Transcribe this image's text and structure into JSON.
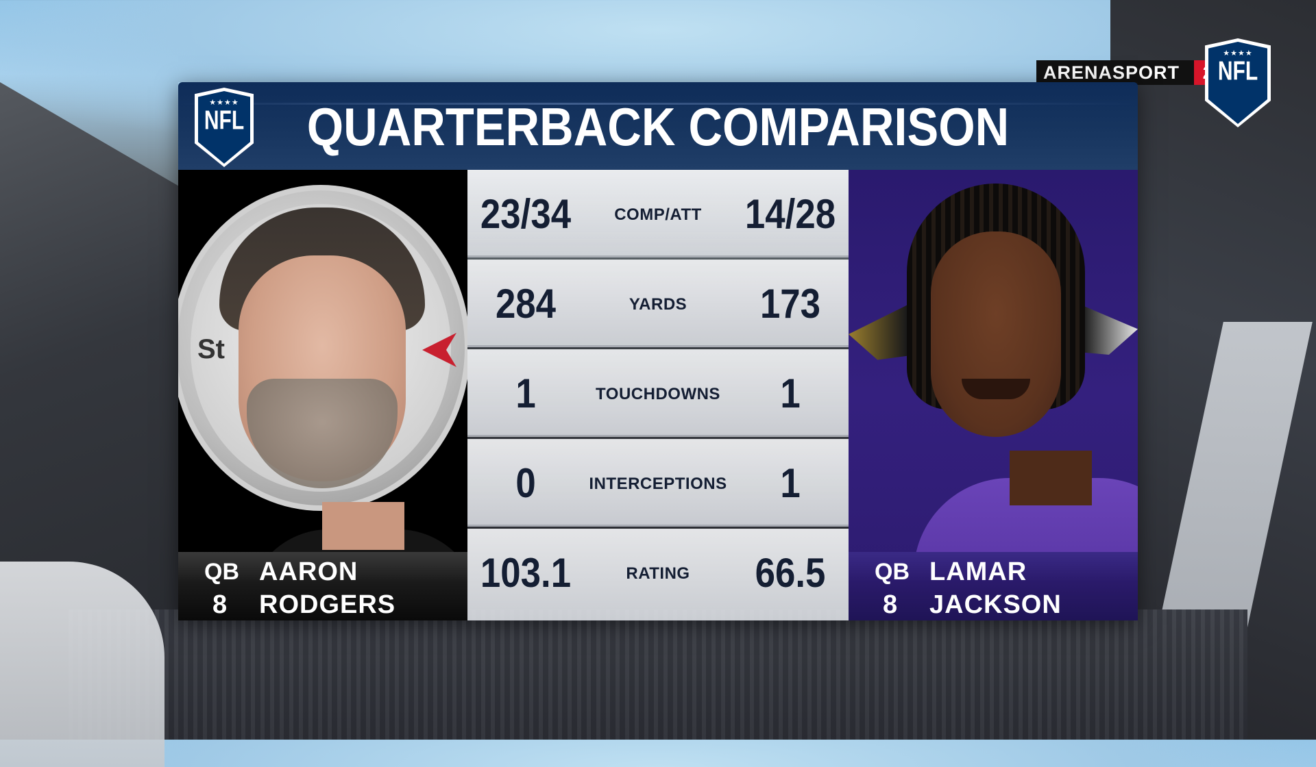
{
  "broadcast": {
    "network": "ARENASPORT",
    "channel": "2",
    "league_logo": "NFL"
  },
  "graphic": {
    "title": "QUARTERBACK COMPARISON",
    "logo": "NFL"
  },
  "players": {
    "left": {
      "position": "QB",
      "number": "8",
      "first_name": "AARON",
      "last_name": "RODGERS",
      "team_color": "#000000"
    },
    "right": {
      "position": "QB",
      "number": "8",
      "first_name": "LAMAR",
      "last_name": "JACKSON",
      "team_color": "#2a1a6e"
    }
  },
  "stats": [
    {
      "label": "COMP/ATT",
      "left": "23/34",
      "right": "14/28"
    },
    {
      "label": "YARDS",
      "left": "284",
      "right": "173"
    },
    {
      "label": "TOUCHDOWNS",
      "left": "1",
      "right": "1"
    },
    {
      "label": "INTERCEPTIONS",
      "left": "0",
      "right": "1"
    },
    {
      "label": "RATING",
      "left": "103.1",
      "right": "66.5"
    }
  ],
  "colors": {
    "header_navy": "#17355f",
    "stat_text": "#141e33",
    "channel_red": "#d7152a"
  }
}
